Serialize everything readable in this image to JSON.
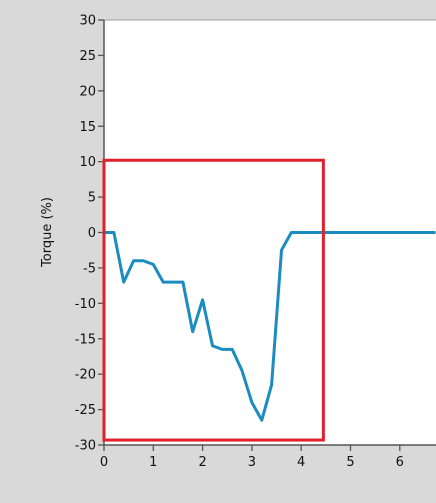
{
  "chart_data": {
    "type": "line",
    "title": "",
    "xlabel": "",
    "ylabel": "Torque (%)",
    "xlim": [
      0,
      6.7
    ],
    "ylim": [
      -30,
      30
    ],
    "xticks": [
      "0",
      "1",
      "2",
      "3",
      "4",
      "5",
      "6"
    ],
    "yticks": [
      "30",
      "25",
      "20",
      "15",
      "10",
      "5",
      "0",
      "-5",
      "-10",
      "-15",
      "-20",
      "-25",
      "-30"
    ],
    "grid": false,
    "legend": "none",
    "series_color": "#1a8cc0",
    "plot_background": "#ffffff",
    "frame_background": "#d9d9d9",
    "highlight_color": "#e0202a",
    "highlight_region": {
      "x": [
        0,
        4.45
      ],
      "y": [
        -29.3,
        10.2
      ]
    },
    "series": [
      {
        "x": [
          0.0,
          0.2,
          0.4,
          0.6,
          0.8,
          1.0,
          1.2,
          1.4,
          1.6,
          1.8,
          2.0,
          2.2,
          2.4,
          2.6,
          2.8,
          3.0,
          3.2,
          3.4,
          3.6,
          3.8,
          4.0,
          4.5,
          5.0,
          5.5,
          6.0,
          6.5,
          6.7
        ],
        "y": [
          0,
          0,
          -7,
          -4,
          -4,
          -4.5,
          -7,
          -7,
          -7,
          -14,
          -9.5,
          -16,
          -16.5,
          -16.5,
          -19.5,
          -24,
          -26.5,
          -21.5,
          -2.5,
          0,
          0,
          0,
          0,
          0,
          0,
          0,
          0
        ]
      }
    ]
  }
}
